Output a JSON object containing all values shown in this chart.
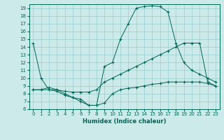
{
  "xlabel": "Humidex (Indice chaleur)",
  "background_color": "#cceaea",
  "grid_color": "#99cccc",
  "line_color": "#006655",
  "xlim": [
    -0.5,
    23.5
  ],
  "ylim": [
    6,
    19.5
  ],
  "xticks": [
    0,
    1,
    2,
    3,
    4,
    5,
    6,
    7,
    8,
    9,
    10,
    11,
    12,
    13,
    14,
    15,
    16,
    17,
    18,
    19,
    20,
    21,
    22,
    23
  ],
  "yticks": [
    6,
    7,
    8,
    9,
    10,
    11,
    12,
    13,
    14,
    15,
    16,
    17,
    18,
    19
  ],
  "line1_x": [
    0,
    1,
    2,
    3,
    4,
    5,
    6,
    7,
    8,
    9,
    10,
    11,
    12,
    13,
    14,
    15,
    16,
    17,
    18,
    19,
    20,
    21,
    22,
    23
  ],
  "line1_y": [
    14.5,
    10,
    8.5,
    8.5,
    8.0,
    7.5,
    7.0,
    6.5,
    6.5,
    11.5,
    12.0,
    15.0,
    17.0,
    19.0,
    19.2,
    19.3,
    19.2,
    18.5,
    14.5,
    12.0,
    11.0,
    10.5,
    10.0,
    9.5
  ],
  "line2_x": [
    0,
    1,
    2,
    3,
    4,
    5,
    6,
    7,
    8,
    9,
    10,
    11,
    12,
    13,
    14,
    15,
    16,
    17,
    18,
    19,
    20,
    21,
    22,
    23
  ],
  "line2_y": [
    8.5,
    8.5,
    8.8,
    8.5,
    8.3,
    8.2,
    8.2,
    8.2,
    8.5,
    9.5,
    10.0,
    10.5,
    11.0,
    11.5,
    12.0,
    12.5,
    13.0,
    13.5,
    14.0,
    14.5,
    14.5,
    14.5,
    9.5,
    9.0
  ],
  "line3_x": [
    0,
    1,
    2,
    3,
    4,
    5,
    6,
    7,
    8,
    9,
    10,
    11,
    12,
    13,
    14,
    15,
    16,
    17,
    18,
    19,
    20,
    21,
    22,
    23
  ],
  "line3_y": [
    8.5,
    8.5,
    8.5,
    8.3,
    7.8,
    7.5,
    7.3,
    6.5,
    6.5,
    6.8,
    8.0,
    8.5,
    8.7,
    8.8,
    9.0,
    9.2,
    9.3,
    9.5,
    9.5,
    9.5,
    9.5,
    9.5,
    9.3,
    9.0
  ]
}
